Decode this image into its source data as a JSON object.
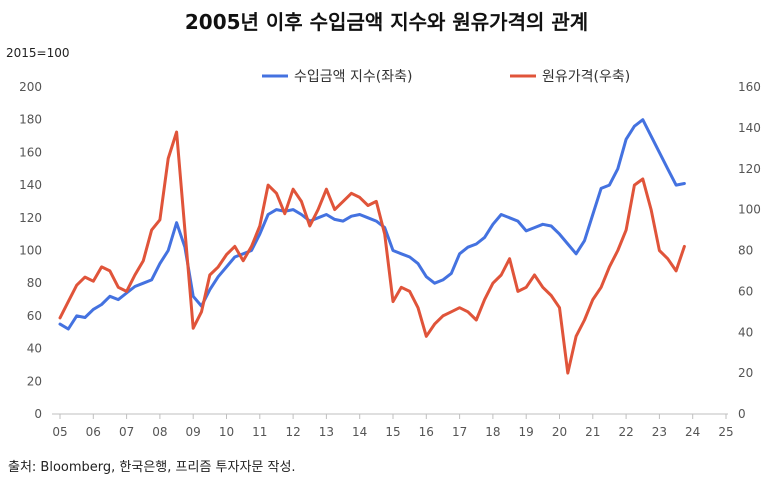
{
  "title": "2005년 이후 수입금액 지수와 원유가격의 관계",
  "unit_label": "2015=100",
  "source": "출처: Bloomberg, 한국은행, 프리즘 투자자문 작성.",
  "colors": {
    "import_index": "#4472E0",
    "oil_price": "#E0543A",
    "axis": "#bfbfbf",
    "text": "#555555"
  },
  "chart_data": {
    "type": "line",
    "title": "2005년 이후 수입금액 지수와 원유가격의 관계",
    "legend_position": "top",
    "grid": false,
    "x_ticks": [
      "05",
      "06",
      "07",
      "08",
      "09",
      "10",
      "11",
      "12",
      "13",
      "14",
      "15",
      "16",
      "17",
      "18",
      "19",
      "20",
      "21",
      "22",
      "23",
      "24",
      "25"
    ],
    "xlim": [
      2005,
      2025
    ],
    "y_left": {
      "ticks": [
        0,
        20,
        40,
        60,
        80,
        100,
        120,
        140,
        160,
        180,
        200
      ],
      "ylim": [
        0,
        200
      ]
    },
    "y_right": {
      "ticks": [
        0,
        20,
        40,
        60,
        80,
        100,
        120,
        140,
        160
      ],
      "ylim": [
        0,
        160
      ]
    },
    "series": [
      {
        "name": "수입금액 지수(좌축)",
        "axis": "left",
        "x": [
          2005.0,
          2005.25,
          2005.5,
          2005.75,
          2006.0,
          2006.25,
          2006.5,
          2006.75,
          2007.0,
          2007.25,
          2007.5,
          2007.75,
          2008.0,
          2008.25,
          2008.5,
          2008.75,
          2009.0,
          2009.25,
          2009.5,
          2009.75,
          2010.0,
          2010.25,
          2010.5,
          2010.75,
          2011.0,
          2011.25,
          2011.5,
          2011.75,
          2012.0,
          2012.25,
          2012.5,
          2012.75,
          2013.0,
          2013.25,
          2013.5,
          2013.75,
          2014.0,
          2014.25,
          2014.5,
          2014.75,
          2015.0,
          2015.25,
          2015.5,
          2015.75,
          2016.0,
          2016.25,
          2016.5,
          2016.75,
          2017.0,
          2017.25,
          2017.5,
          2017.75,
          2018.0,
          2018.25,
          2018.5,
          2018.75,
          2019.0,
          2019.25,
          2019.5,
          2019.75,
          2020.0,
          2020.25,
          2020.5,
          2020.75,
          2021.0,
          2021.25,
          2021.5,
          2021.75,
          2022.0,
          2022.25,
          2022.5,
          2022.75,
          2023.0,
          2023.25,
          2023.5,
          2023.75
        ],
        "y": [
          55,
          52,
          60,
          59,
          64,
          67,
          72,
          70,
          74,
          78,
          80,
          82,
          92,
          100,
          117,
          102,
          72,
          66,
          76,
          84,
          90,
          96,
          98,
          100,
          110,
          122,
          125,
          124,
          125,
          122,
          118,
          120,
          122,
          119,
          118,
          121,
          122,
          120,
          118,
          114,
          100,
          98,
          96,
          92,
          84,
          80,
          82,
          86,
          98,
          102,
          104,
          108,
          116,
          122,
          120,
          118,
          112,
          114,
          116,
          115,
          110,
          104,
          98,
          106,
          122,
          138,
          140,
          150,
          168,
          176,
          180,
          170,
          160,
          150,
          140,
          141
        ]
      },
      {
        "name": "원유가격(우축)",
        "axis": "right",
        "x": [
          2005.0,
          2005.25,
          2005.5,
          2005.75,
          2006.0,
          2006.25,
          2006.5,
          2006.75,
          2007.0,
          2007.25,
          2007.5,
          2007.75,
          2008.0,
          2008.25,
          2008.5,
          2008.75,
          2009.0,
          2009.25,
          2009.5,
          2009.75,
          2010.0,
          2010.25,
          2010.5,
          2010.75,
          2011.0,
          2011.25,
          2011.5,
          2011.75,
          2012.0,
          2012.25,
          2012.5,
          2012.75,
          2013.0,
          2013.25,
          2013.5,
          2013.75,
          2014.0,
          2014.25,
          2014.5,
          2014.75,
          2015.0,
          2015.25,
          2015.5,
          2015.75,
          2016.0,
          2016.25,
          2016.5,
          2016.75,
          2017.0,
          2017.25,
          2017.5,
          2017.75,
          2018.0,
          2018.25,
          2018.5,
          2018.75,
          2019.0,
          2019.25,
          2019.5,
          2019.75,
          2020.0,
          2020.25,
          2020.5,
          2020.75,
          2021.0,
          2021.25,
          2021.5,
          2021.75,
          2022.0,
          2022.25,
          2022.5,
          2022.75,
          2023.0,
          2023.25,
          2023.5,
          2023.75
        ],
        "y": [
          47,
          55,
          63,
          67,
          65,
          72,
          70,
          62,
          60,
          68,
          75,
          90,
          95,
          125,
          138,
          90,
          42,
          50,
          68,
          72,
          78,
          82,
          75,
          82,
          92,
          112,
          108,
          98,
          110,
          104,
          92,
          100,
          110,
          100,
          104,
          108,
          106,
          102,
          104,
          88,
          55,
          62,
          60,
          52,
          38,
          44,
          48,
          50,
          52,
          50,
          46,
          56,
          64,
          68,
          76,
          60,
          62,
          68,
          62,
          58,
          52,
          20,
          38,
          46,
          56,
          62,
          72,
          80,
          90,
          112,
          115,
          100,
          80,
          76,
          70,
          82
        ]
      }
    ]
  }
}
